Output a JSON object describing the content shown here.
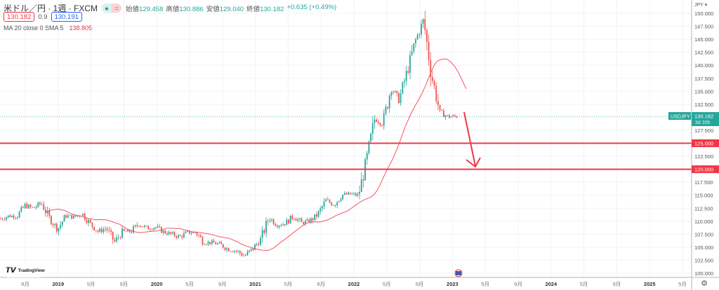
{
  "header": {
    "title": "米ドル／円 · 1週 · FXCM",
    "ohlc": [
      {
        "k": "始値",
        "v": "129.458"
      },
      {
        "k": "高値",
        "v": "130.886"
      },
      {
        "k": "安値",
        "v": "129.040"
      },
      {
        "k": "終値",
        "v": "130.182"
      }
    ],
    "change": "+0.635 (+0.49%)",
    "sell": "130.182",
    "spread": "0.9",
    "buy": "130.191",
    "indicator": "MA 20 close 0 SMA 5",
    "indicator_value": "138.805"
  },
  "axis": {
    "currency": "JPY ▾",
    "symbol": "USDJPY",
    "last": "130.182",
    "countdown": "3d 20h",
    "levels": [
      "125.000",
      "120.000"
    ],
    "time_labels": [
      [
        "9月",
        0
      ],
      [
        "2019",
        1
      ],
      [
        "5月",
        0
      ],
      [
        "9月",
        0
      ],
      [
        "2020",
        1
      ],
      [
        "5月",
        0
      ],
      [
        "9月",
        0
      ],
      [
        "2021",
        1
      ],
      [
        "5月",
        0
      ],
      [
        "9月",
        0
      ],
      [
        "2022",
        1
      ],
      [
        "5月",
        0
      ],
      [
        "9月",
        0
      ],
      [
        "2023",
        1
      ],
      [
        "5月",
        0
      ],
      [
        "9月",
        0
      ],
      [
        "2024",
        1
      ],
      [
        "5月",
        0
      ],
      [
        "9月",
        0
      ],
      [
        "2025",
        1
      ],
      [
        "5月",
        0
      ]
    ]
  },
  "logo": "TradingView",
  "colors": {
    "up": "#26a69a",
    "down": "#ef5350",
    "level": "#f23645",
    "sma": "#f7525f"
  },
  "chart_data": {
    "type": "candlestick",
    "symbol": "USDJPY",
    "interval": "1W",
    "ylim": [
      100,
      150
    ],
    "yticks_step": 2.5,
    "monthly_closes_from_2018_06": [
      110.5,
      111,
      111,
      113,
      112.5,
      113.5,
      110.5,
      108.5,
      111,
      110.8,
      111.5,
      109.5,
      108,
      108.7,
      106,
      108,
      108,
      109.5,
      108.6,
      108.9,
      108,
      107.5,
      107,
      107.8,
      107.9,
      105.9,
      105.9,
      105.5,
      104.6,
      104.3,
      103.3,
      104.7,
      106.6,
      110.7,
      109.3,
      109.6,
      111,
      109.7,
      110,
      111.3,
      114,
      113.2,
      115.1,
      115.2,
      115,
      121.7,
      129.8,
      128.7,
      135.7,
      133.3,
      138.9,
      144.7,
      148.7,
      138,
      131,
      130.1,
      130.18
    ],
    "horizontal_levels": [
      125,
      120
    ],
    "sma_period": 20
  }
}
